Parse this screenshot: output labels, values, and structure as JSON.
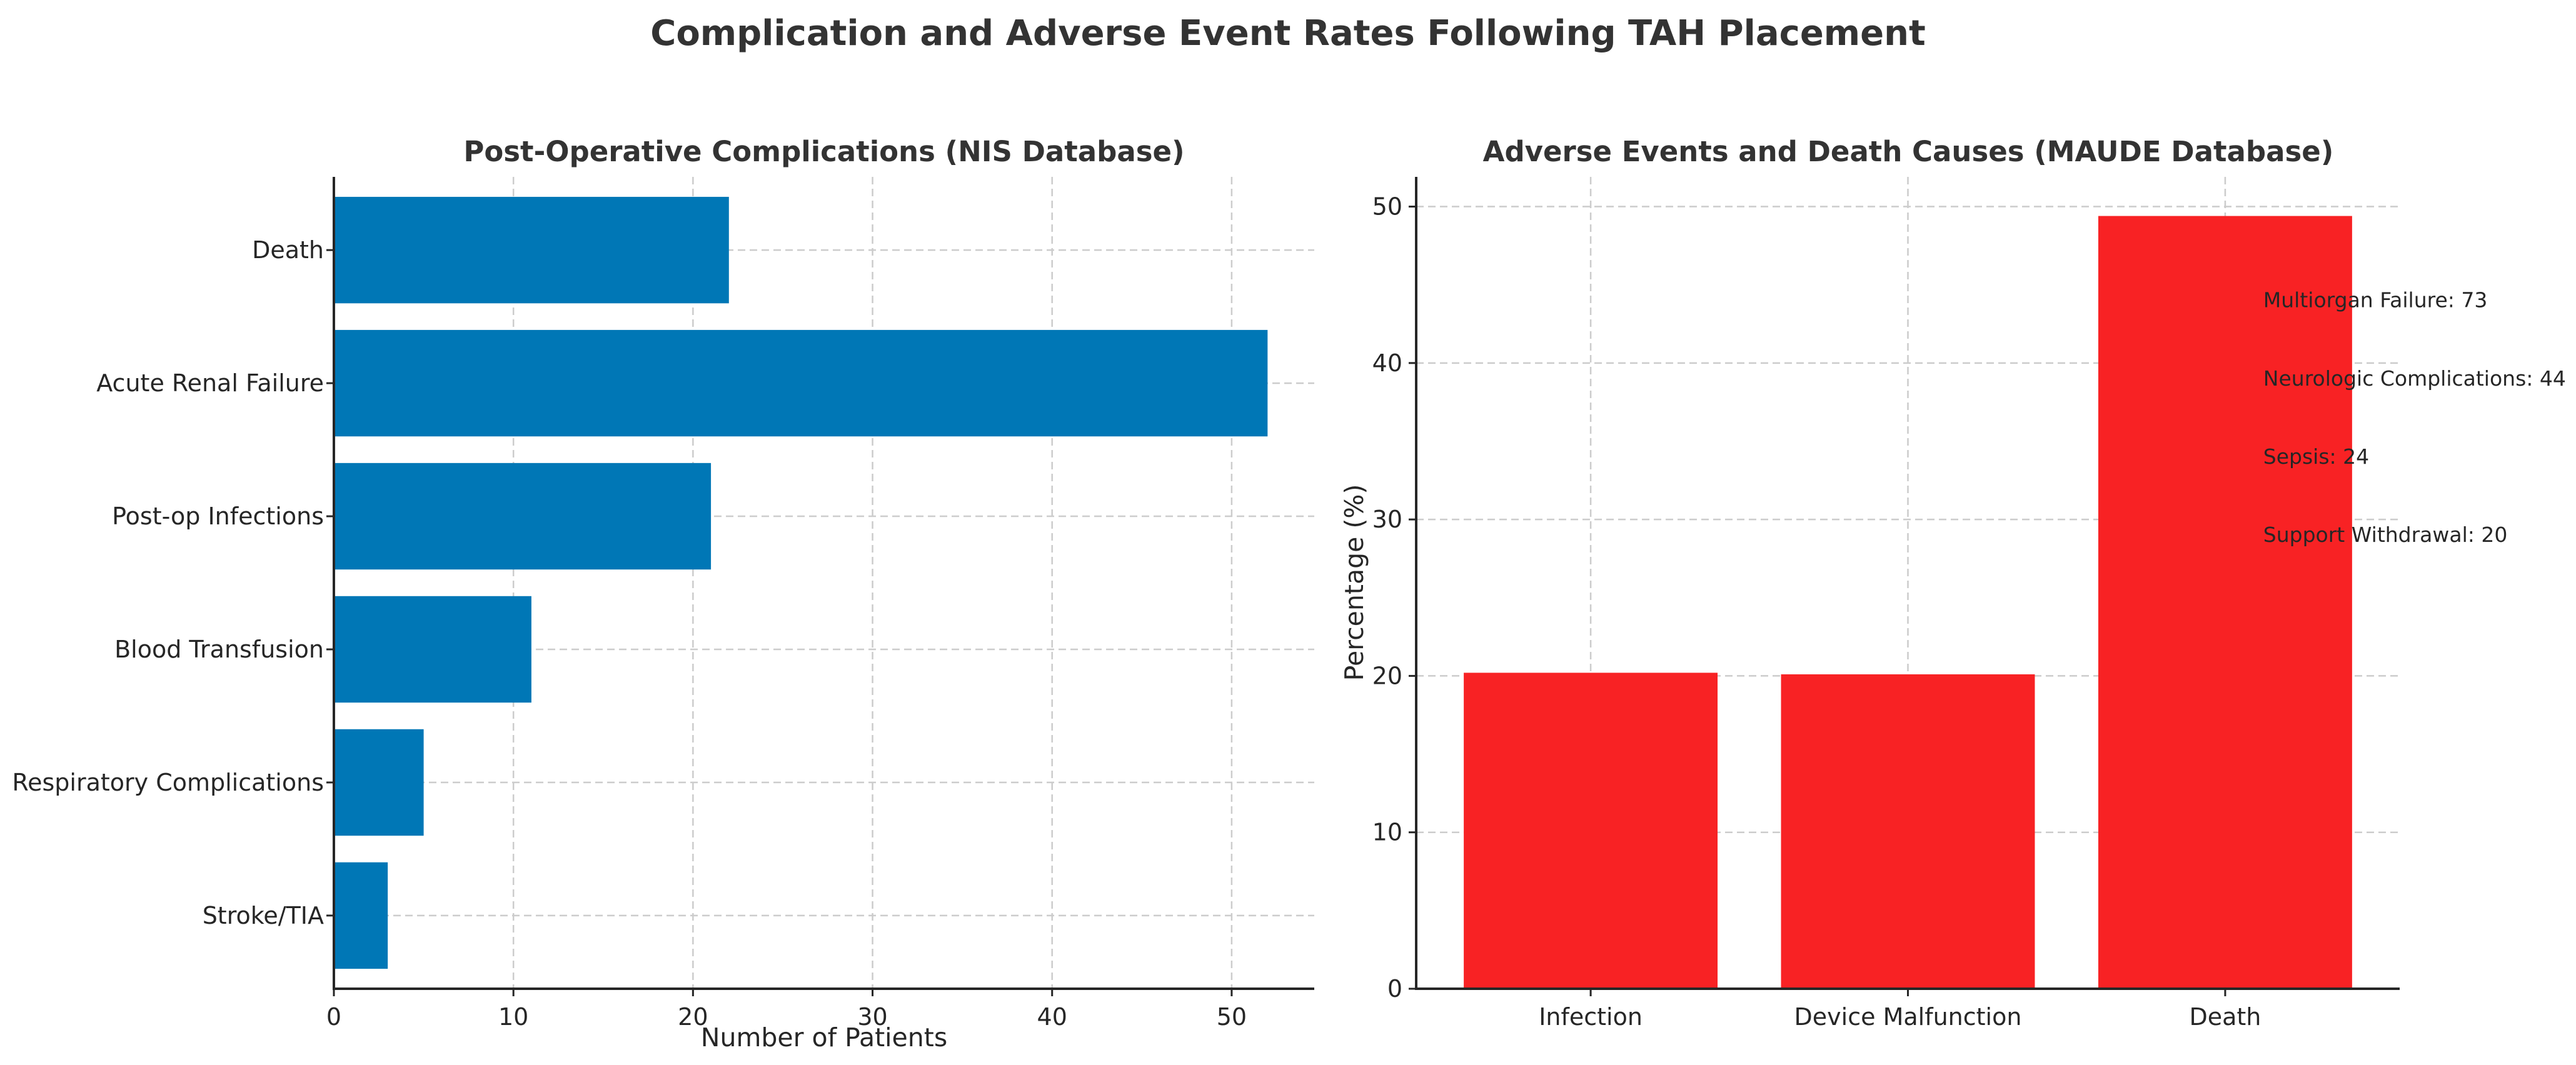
{
  "figure": {
    "title": "Complication and Adverse Event Rates Following TAH Placement"
  },
  "chart_data": [
    {
      "type": "bar",
      "orientation": "horizontal",
      "title": "Post-Operative Complications (NIS Database)",
      "categories": [
        "Death",
        "Acute Renal Failure",
        "Post-op Infections",
        "Blood Transfusion",
        "Respiratory Complications",
        "Stroke/TIA"
      ],
      "values": [
        22,
        52,
        21,
        11,
        5,
        3
      ],
      "xlabel": "Number of Patients",
      "ylabel": "",
      "xlim": [
        0,
        54.6
      ],
      "xticks": [
        0,
        10,
        20,
        30,
        40,
        50
      ],
      "grid": true,
      "color": "#0077b6"
    },
    {
      "type": "bar",
      "orientation": "vertical",
      "title": "Adverse Events and Death Causes (MAUDE Database)",
      "categories": [
        "Infection",
        "Device Malfunction",
        "Death"
      ],
      "values": [
        20.2,
        20.1,
        49.4
      ],
      "xlabel": "",
      "ylabel": "Percentage (%)",
      "ylim": [
        0,
        51.9
      ],
      "yticks": [
        0,
        10,
        20,
        30,
        40,
        50
      ],
      "grid": true,
      "color": "#f82224",
      "annotations": [
        {
          "text": "Multiorgan Failure: 73",
          "y": 44
        },
        {
          "text": "Neurologic Complications: 44",
          "y": 39
        },
        {
          "text": "Sepsis: 24",
          "y": 34
        },
        {
          "text": "Support Withdrawal: 20",
          "y": 29
        }
      ]
    }
  ]
}
